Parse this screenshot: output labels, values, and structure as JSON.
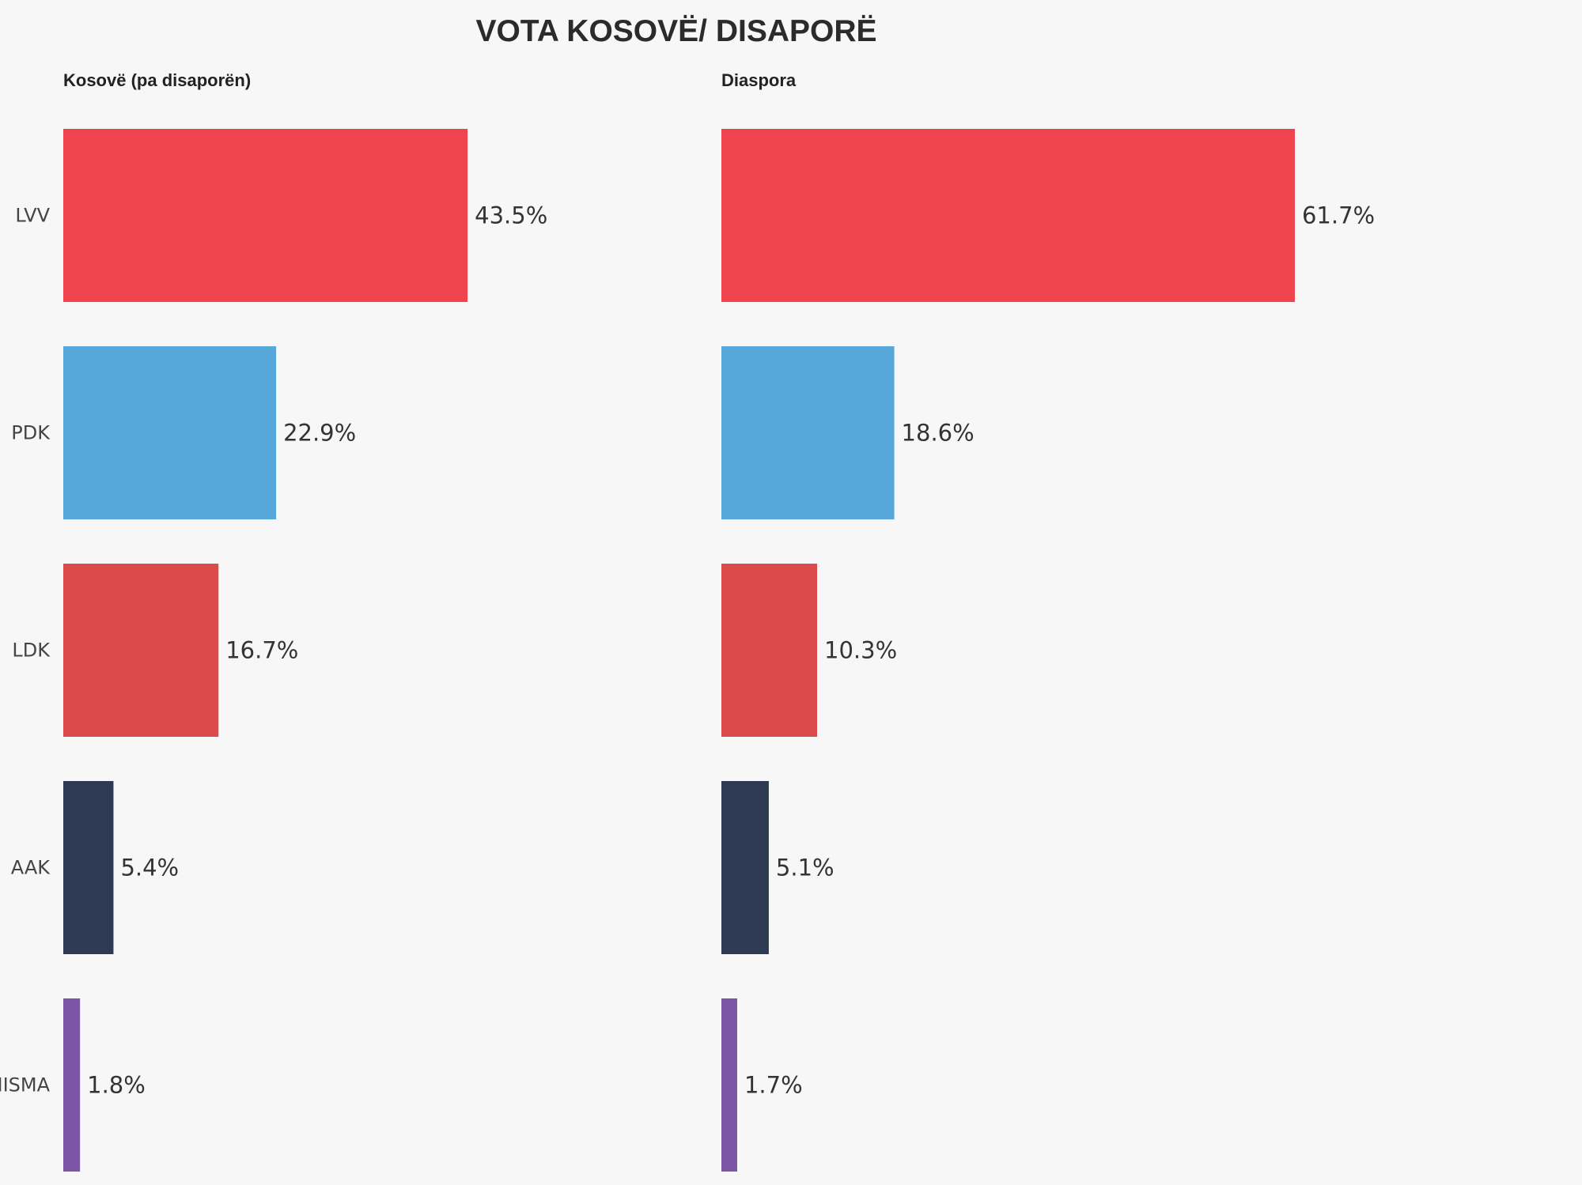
{
  "title": "VOTA KOSOVË/ DISAPORË",
  "categories": [
    "LVV",
    "PDK",
    "LDK",
    "AAK",
    "NISMA"
  ],
  "colors": [
    "#ef444d",
    "#55a8d9",
    "#dd4a4b",
    "#2e3a52",
    "#7c55a6"
  ],
  "chart_data": [
    {
      "type": "bar",
      "orientation": "horizontal",
      "title": "Kosovë (pa disaporën)",
      "categories": [
        "LVV",
        "PDK",
        "LDK",
        "AAK",
        "NISMA"
      ],
      "values": [
        43.5,
        22.9,
        16.7,
        5.4,
        1.8
      ],
      "value_labels": [
        "43.5%",
        "22.9%",
        "16.7%",
        "5.4%",
        "1.8%"
      ],
      "unit": "%",
      "grid": false,
      "legend": "none"
    },
    {
      "type": "bar",
      "orientation": "horizontal",
      "title": "Diaspora",
      "categories": [
        "LVV",
        "PDK",
        "LDK",
        "AAK",
        "NISMA"
      ],
      "values": [
        61.7,
        18.6,
        10.3,
        5.1,
        1.7
      ],
      "value_labels": [
        "61.7%",
        "18.6%",
        "10.3%",
        "5.1%",
        "1.7%"
      ],
      "unit": "%",
      "grid": false,
      "legend": "none"
    }
  ]
}
